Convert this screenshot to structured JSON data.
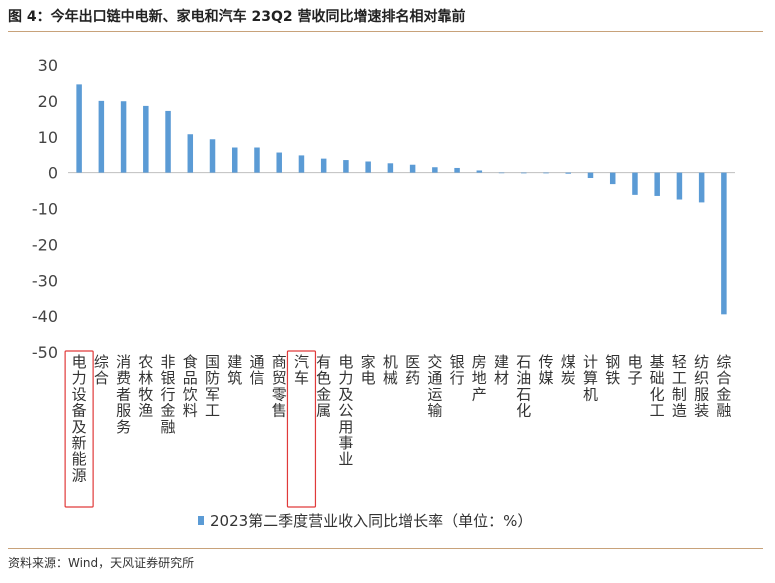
{
  "title": "图 4：今年出口链中电新、家电和汽车 23Q2 营收同比增速排名相对靠前",
  "source": "资料来源：Wind，天风证券研究所",
  "colors": {
    "bar": "#5b9bd5",
    "highlight_box": "#e03a3a",
    "rule": "#c8a27a"
  },
  "chart_data": {
    "type": "bar",
    "title": "",
    "xlabel": "",
    "ylabel": "",
    "ylim": [
      -50,
      30
    ],
    "yticks": [
      30,
      20,
      10,
      0,
      -10,
      -20,
      -30,
      -40,
      -50
    ],
    "grid": false,
    "legend_position": "bottom",
    "categories": [
      "电力设备及新能源",
      "综合",
      "消费者服务",
      "农林牧渔",
      "非银行金融",
      "食品饮料",
      "国防军工",
      "建筑",
      "通信",
      "商贸零售",
      "汽车",
      "有色金属",
      "电力及公用事业",
      "家电",
      "机械",
      "医药",
      "交通运输",
      "银行",
      "房地产",
      "建材",
      "石油石化",
      "传媒",
      "煤炭",
      "计算机",
      "钢铁",
      "电子",
      "基础化工",
      "轻工制造",
      "纺织服装",
      "综合金融"
    ],
    "series": [
      {
        "name": "2023第二季度营业收入同比增长率（单位：%）",
        "values": [
          24.6,
          20,
          19.9,
          18.6,
          17.2,
          10.7,
          9.3,
          7,
          7,
          5.6,
          4.8,
          3.9,
          3.5,
          3.1,
          2.6,
          2.2,
          1.5,
          1.3,
          0.6,
          -0.1,
          -0.2,
          -0.2,
          -0.3,
          -1.5,
          -3.2,
          -6.2,
          -6.5,
          -7.5,
          -8.3,
          -39.5
        ]
      }
    ],
    "highlighted_categories": [
      "电力设备及新能源",
      "汽车"
    ]
  }
}
